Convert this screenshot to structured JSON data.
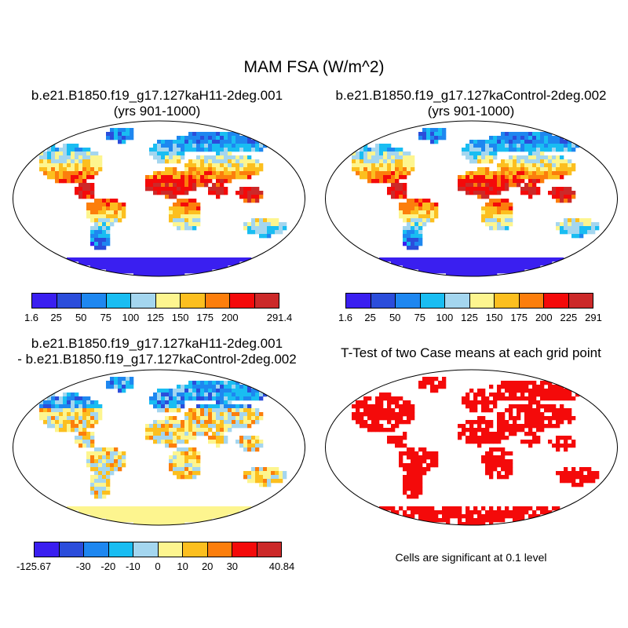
{
  "title": "MAM FSA (W/m^2)",
  "panels": [
    {
      "title_line1": "b.e21.B1850.f19_g17.127kaH11-2deg.001",
      "title_line2": "(yrs 901-1000)",
      "colorbar": {
        "colors": [
          "#3a1ff0",
          "#2b4ddb",
          "#1e87f0",
          "#19bdf2",
          "#a4d6ef",
          "#fdf58f",
          "#fcbf1f",
          "#fc7e0c",
          "#f40a0a",
          "#cc2929"
        ],
        "labels": [
          "1.6",
          "25",
          "50",
          "75",
          "100",
          "125",
          "150",
          "175",
          "200",
          "291.4"
        ],
        "label_slots": [
          0,
          1,
          2,
          3,
          4,
          5,
          6,
          7,
          8,
          10
        ]
      }
    },
    {
      "title_line1": "b.e21.B1850.f19_g17.127kaControl-2deg.002",
      "title_line2": "(yrs 901-1000)",
      "colorbar": {
        "colors": [
          "#3a1ff0",
          "#2b4ddb",
          "#1e87f0",
          "#19bdf2",
          "#a4d6ef",
          "#fdf58f",
          "#fcbf1f",
          "#fc7e0c",
          "#f40a0a",
          "#cc2929"
        ],
        "labels": [
          "1.6",
          "25",
          "50",
          "75",
          "100",
          "125",
          "150",
          "175",
          "200",
          "225",
          "291"
        ],
        "label_slots": [
          0,
          1,
          2,
          3,
          4,
          5,
          6,
          7,
          8,
          9,
          10
        ]
      }
    },
    {
      "title_line1": "b.e21.B1850.f19_g17.127kaH11-2deg.001",
      "title_line2": "- b.e21.B1850.f19_g17.127kaControl-2deg.002",
      "colorbar": {
        "colors": [
          "#3a1ff0",
          "#2b4ddb",
          "#1e87f0",
          "#19bdf2",
          "#a4d6ef",
          "#fdf58f",
          "#fcbf1f",
          "#fc7e0c",
          "#f40a0a",
          "#cc2929"
        ],
        "labels": [
          "-125.67",
          "-30",
          "-20",
          "-10",
          "0",
          "10",
          "20",
          "30",
          "40.84"
        ],
        "label_slots": [
          0,
          2,
          3,
          4,
          5,
          6,
          7,
          8,
          10
        ]
      }
    },
    {
      "title_line1": "T-Test of two Case means at each grid point",
      "note": "Cells are significant at 0.1 level"
    }
  ]
}
